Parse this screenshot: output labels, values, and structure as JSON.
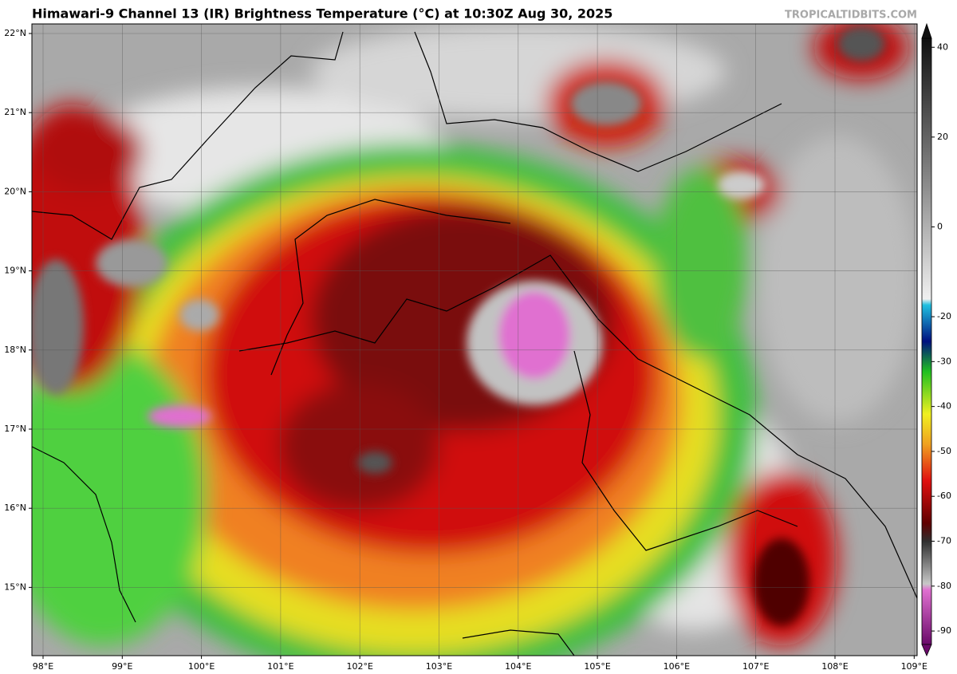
{
  "title": "Himawari-9 Channel 13 (IR) Brightness Temperature (°C) at 10:30Z Aug 30, 2025",
  "credit": "TROPICALTIDBITS.COM",
  "lat_labels": [
    "22°N",
    "21°N",
    "20°N",
    "19°N",
    "18°N",
    "17°N",
    "16°N",
    "15°N"
  ],
  "lon_labels": [
    "98°E",
    "99°E",
    "100°E",
    "101°E",
    "102°E",
    "103°E",
    "104°E",
    "105°E",
    "106°E",
    "107°E",
    "108°E",
    "109°E"
  ],
  "colorbar": {
    "range": [
      -93,
      42
    ],
    "ticks": [
      40,
      20,
      0,
      -20,
      -30,
      -40,
      -50,
      -60,
      -70,
      -80,
      -90
    ]
  }
}
